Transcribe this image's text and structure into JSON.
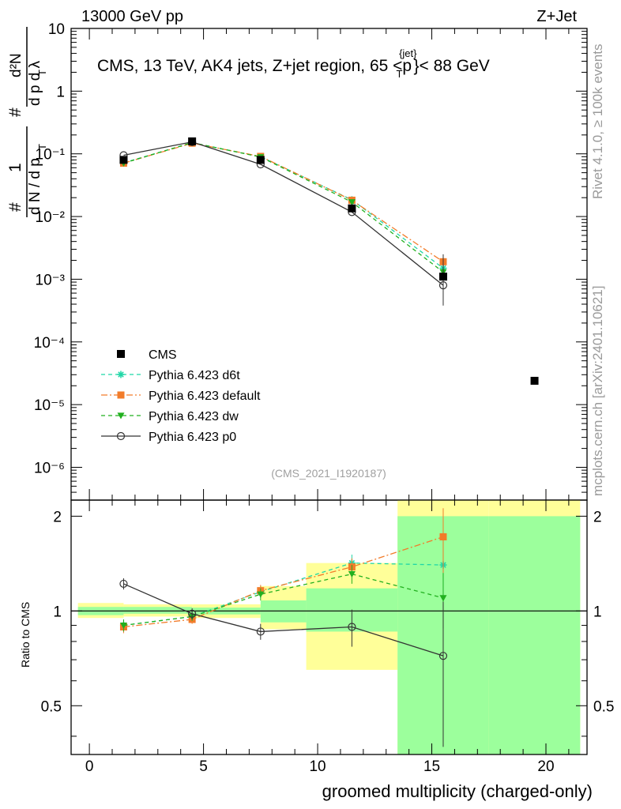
{
  "header": {
    "left": "13000 GeV pp",
    "right": "Z+Jet"
  },
  "side_labels": {
    "rivet": "Rivet 4.1.0, ≥ 100k events",
    "mcplots": "mcplots.cern.ch [arXiv:2401.10621]"
  },
  "chart_data": {
    "type": "line",
    "title": "CMS, 13 TeV, AK4 jets, Z+jet region, 65 <p",
    "title_sup": "{jet}",
    "title_sub": "T",
    "title_end": "}< 88 GeV",
    "analysis_id": "(CMS_2021_I1920187)",
    "xlabel": "groomed multiplicity (charged-only)",
    "ylabel_main": "1 / dN/dpT · d²N / dpT dλ",
    "ylabel_ratio": "Ratio to CMS",
    "xlim": [
      -0.8,
      21.8
    ],
    "ylim_main": [
      3e-07,
      10
    ],
    "ylim_ratio": [
      0.35,
      2.25
    ],
    "x_ticks": [
      "0",
      "5",
      "10",
      "15",
      "20"
    ],
    "y_ticks_main": [
      "10",
      "1",
      "10⁻¹",
      "10⁻²",
      "10⁻³",
      "10⁻⁴",
      "10⁻⁵",
      "10⁻⁶"
    ],
    "y_ticks_ratio": [
      "2",
      "1",
      "0.5"
    ],
    "bin_edges": [
      -0.5,
      1.5,
      4.5,
      7.5,
      9.5,
      13.5,
      17.5,
      21.5
    ],
    "data": {
      "name": "CMS",
      "x": [
        1.5,
        4.5,
        7.5,
        11.5,
        15.5,
        19.5
      ],
      "y": [
        0.08,
        0.158,
        0.08,
        0.0135,
        0.0011,
        2.4e-05
      ]
    },
    "series": [
      {
        "name": "Pythia 6.423 d6t",
        "color": "#1fd6a6",
        "marker": "star",
        "dash": "5,4",
        "x": [
          1.5,
          4.5,
          7.5,
          11.5,
          15.5
        ],
        "y": [
          0.072,
          0.15,
          0.09,
          0.0185,
          0.0015
        ],
        "ratio": [
          0.9,
          0.96,
          1.15,
          1.42,
          1.4
        ],
        "ratio_err": [
          0.04,
          0.03,
          0.05,
          0.09,
          0.28
        ]
      },
      {
        "name": "Pythia 6.423 default",
        "color": "#f27c2a",
        "marker": "square",
        "dash": "8,3,2,3",
        "x": [
          1.5,
          4.5,
          7.5,
          11.5,
          15.5
        ],
        "y": [
          0.071,
          0.148,
          0.091,
          0.0182,
          0.0019
        ],
        "ratio": [
          0.89,
          0.94,
          1.16,
          1.38,
          1.72
        ],
        "ratio_err": [
          0.04,
          0.03,
          0.05,
          0.09,
          0.4
        ]
      },
      {
        "name": "Pythia 6.423 dw",
        "color": "#22b01f",
        "marker": "triangle",
        "dash": "5,4",
        "x": [
          1.5,
          4.5,
          7.5,
          11.5,
          15.5
        ],
        "y": [
          0.071,
          0.151,
          0.089,
          0.017,
          0.0013
        ],
        "ratio": [
          0.9,
          0.96,
          1.13,
          1.31,
          1.1
        ],
        "ratio_err": [
          0.04,
          0.03,
          0.05,
          0.09,
          0.22
        ]
      },
      {
        "name": "Pythia 6.423 p0",
        "color": "#333333",
        "marker": "circle",
        "dash": "",
        "x": [
          1.5,
          4.5,
          7.5,
          11.5,
          15.5
        ],
        "y": [
          0.095,
          0.155,
          0.068,
          0.0118,
          0.0008
        ],
        "ratio": [
          1.22,
          0.98,
          0.86,
          0.89,
          0.72
        ],
        "ratio_err": [
          0.05,
          0.04,
          0.05,
          0.12,
          0.35
        ]
      }
    ],
    "ratio_bands": {
      "stat_color": "#9cff9c",
      "syst_color": "#ffff99",
      "stat": [
        [
          0.97,
          1.03
        ],
        [
          0.98,
          1.03
        ],
        [
          0.975,
          1.025
        ],
        [
          0.92,
          1.08
        ],
        [
          0.86,
          1.18
        ],
        [
          0.34,
          2.0
        ],
        [
          0.34,
          2.0
        ]
      ],
      "total": [
        [
          0.95,
          1.06
        ],
        [
          0.96,
          1.05
        ],
        [
          0.95,
          1.05
        ],
        [
          0.875,
          1.2
        ],
        [
          0.65,
          1.42
        ],
        [
          0.34,
          2.3
        ],
        [
          0.34,
          2.3
        ]
      ]
    }
  }
}
